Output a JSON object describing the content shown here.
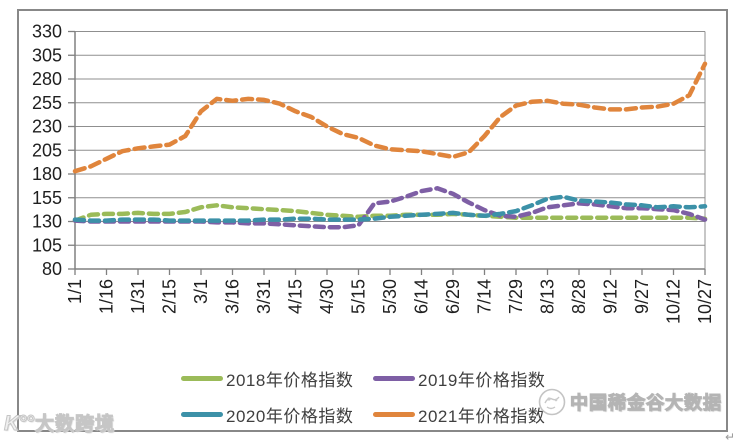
{
  "watermark_left": {
    "logo": "K°°",
    "text": "大数跨境"
  },
  "watermark_right": {
    "text": "中国稀金谷大数据"
  },
  "corner_mark": "↵",
  "chart_data": {
    "type": "line",
    "title": "",
    "xlabel": "",
    "ylabel": "",
    "ylim": [
      80,
      330
    ],
    "y_ticks": [
      80,
      105,
      130,
      155,
      180,
      205,
      230,
      255,
      280,
      305,
      330
    ],
    "x_tick_labels": [
      "1/1",
      "1/16",
      "1/31",
      "2/15",
      "3/1",
      "3/16",
      "3/31",
      "4/15",
      "4/30",
      "5/15",
      "5/30",
      "6/14",
      "6/29",
      "7/14",
      "7/29",
      "8/13",
      "8/28",
      "9/12",
      "9/27",
      "10/12",
      "10/27"
    ],
    "points_per_tick_interval": 2,
    "grid": "horizontal",
    "legend_position": "bottom",
    "line_style": "dashed",
    "axis_color": "#808080",
    "grid_color": "#8f8f8f",
    "tick_label_color": "#1f1f1f",
    "series": [
      {
        "name": "2018年价格指数",
        "color": "#9BBB59",
        "dash": [
          9,
          6
        ],
        "values": [
          131,
          137,
          138,
          138,
          139,
          138,
          138,
          140,
          145,
          147,
          145,
          144,
          143,
          142,
          141,
          139,
          137,
          136,
          135,
          136,
          136,
          137,
          137,
          137,
          138,
          137,
          136,
          135,
          134,
          134,
          134,
          134,
          134,
          134,
          134,
          134,
          134,
          134,
          134,
          134,
          133
        ]
      },
      {
        "name": "2019年价格指数",
        "color": "#7E5FA5",
        "dash": [
          9,
          6
        ],
        "values": [
          131,
          130,
          130,
          130,
          130,
          130,
          130,
          130,
          130,
          129,
          129,
          128,
          128,
          127,
          126,
          125,
          124,
          124,
          126,
          149,
          151,
          156,
          162,
          165,
          159,
          150,
          142,
          136,
          135,
          139,
          145,
          147,
          149,
          148,
          146,
          144,
          144,
          143,
          142,
          138,
          132
        ]
      },
      {
        "name": "2020年价格指数",
        "color": "#3C91A8",
        "dash": [
          9,
          6
        ],
        "values": [
          132,
          131,
          131,
          132,
          132,
          132,
          131,
          131,
          131,
          131,
          131,
          131,
          132,
          132,
          133,
          133,
          132,
          132,
          132,
          133,
          135,
          136,
          137,
          138,
          139,
          137,
          136,
          138,
          141,
          147,
          154,
          156,
          152,
          151,
          150,
          148,
          147,
          145,
          146,
          145,
          146
        ]
      },
      {
        "name": "2021年价格指数",
        "color": "#E0853C",
        "dash": [
          10,
          6
        ],
        "values": [
          183,
          188,
          196,
          204,
          207,
          209,
          211,
          220,
          246,
          259,
          257,
          259,
          258,
          254,
          246,
          240,
          230,
          222,
          218,
          210,
          206,
          205,
          204,
          201,
          198,
          203,
          220,
          240,
          252,
          256,
          257,
          254,
          253,
          250,
          248,
          248,
          250,
          251,
          254,
          263,
          296
        ]
      }
    ]
  }
}
